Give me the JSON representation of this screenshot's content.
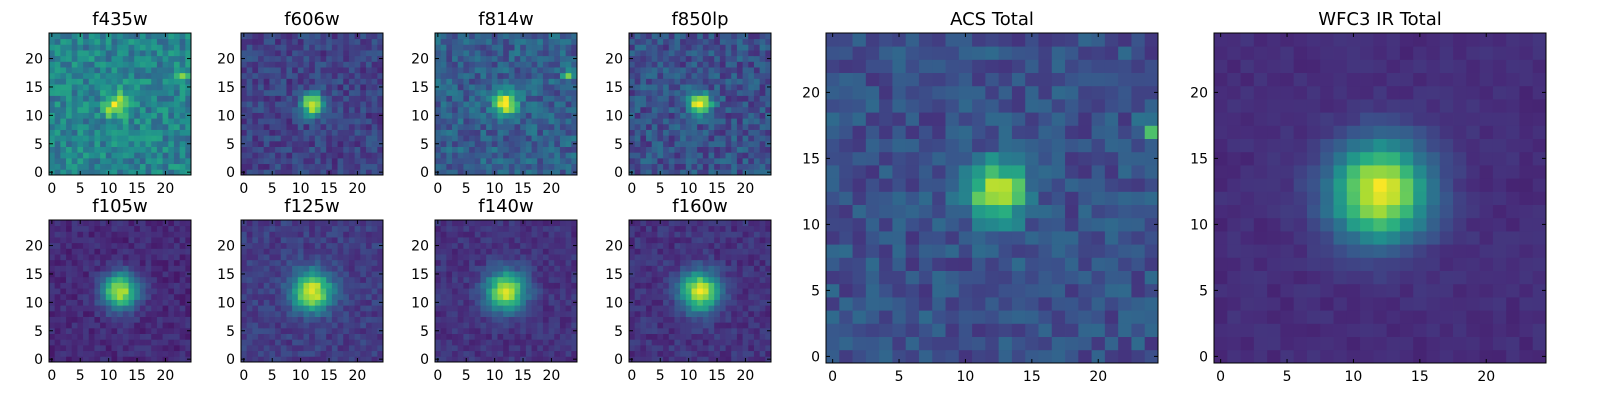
{
  "chart_data": [
    {
      "type": "heatmap",
      "title": "f435w",
      "peak": [
        12,
        12
      ],
      "amp": 0.4,
      "sigma": 1.6,
      "base": 0.45,
      "noise": 0.28,
      "extra": [
        [
          23,
          17,
          0.5
        ],
        [
          10,
          11,
          0.35
        ],
        [
          11,
          12,
          0.3
        ]
      ],
      "xticks": [
        "0",
        "5",
        "10",
        "15",
        "20"
      ],
      "yticks": [
        "0",
        "5",
        "10",
        "15",
        "20"
      ]
    },
    {
      "type": "heatmap",
      "title": "f606w",
      "peak": [
        12,
        12
      ],
      "amp": 0.75,
      "sigma": 1.4,
      "base": 0.2,
      "noise": 0.2,
      "extra": [],
      "xticks": [
        "0",
        "5",
        "10",
        "15",
        "20"
      ],
      "yticks": [
        "0",
        "5",
        "10",
        "15",
        "20"
      ]
    },
    {
      "type": "heatmap",
      "title": "f814w",
      "peak": [
        12,
        12
      ],
      "amp": 0.75,
      "sigma": 1.4,
      "base": 0.3,
      "noise": 0.25,
      "extra": [
        [
          23,
          17,
          0.55
        ]
      ],
      "xticks": [
        "0",
        "5",
        "10",
        "15",
        "20"
      ],
      "yticks": [
        "0",
        "5",
        "10",
        "15",
        "20"
      ]
    },
    {
      "type": "heatmap",
      "title": "f850lp",
      "peak": [
        12,
        12
      ],
      "amp": 0.75,
      "sigma": 1.4,
      "base": 0.25,
      "noise": 0.25,
      "extra": [],
      "xticks": [
        "0",
        "5",
        "10",
        "15",
        "20"
      ],
      "yticks": [
        "0",
        "5",
        "10",
        "15",
        "20"
      ]
    },
    {
      "type": "heatmap",
      "title": "f105w",
      "peak": [
        12,
        12
      ],
      "amp": 0.8,
      "sigma": 2.2,
      "base": 0.12,
      "noise": 0.12,
      "extra": [],
      "xticks": [
        "0",
        "5",
        "10",
        "15",
        "20"
      ],
      "yticks": [
        "0",
        "5",
        "10",
        "15",
        "20"
      ]
    },
    {
      "type": "heatmap",
      "title": "f125w",
      "peak": [
        12,
        12
      ],
      "amp": 0.8,
      "sigma": 2.4,
      "base": 0.18,
      "noise": 0.14,
      "extra": [],
      "xticks": [
        "0",
        "5",
        "10",
        "15",
        "20"
      ],
      "yticks": [
        "0",
        "5",
        "10",
        "15",
        "20"
      ]
    },
    {
      "type": "heatmap",
      "title": "f140w",
      "peak": [
        12,
        12
      ],
      "amp": 0.8,
      "sigma": 2.4,
      "base": 0.15,
      "noise": 0.12,
      "extra": [],
      "xticks": [
        "0",
        "5",
        "10",
        "15",
        "20"
      ],
      "yticks": [
        "0",
        "5",
        "10",
        "15",
        "20"
      ]
    },
    {
      "type": "heatmap",
      "title": "f160w",
      "peak": [
        12,
        12
      ],
      "amp": 0.8,
      "sigma": 2.4,
      "base": 0.15,
      "noise": 0.13,
      "extra": [],
      "xticks": [
        "0",
        "5",
        "10",
        "15",
        "20"
      ],
      "yticks": [
        "0",
        "5",
        "10",
        "15",
        "20"
      ]
    },
    {
      "type": "heatmap",
      "title": "ACS Total",
      "peak": [
        12.5,
        12.5
      ],
      "amp": 0.75,
      "sigma": 1.5,
      "base": 0.25,
      "noise": 0.2,
      "extra": [
        [
          24,
          17,
          0.4
        ]
      ],
      "xticks": [
        "0",
        "5",
        "10",
        "15",
        "20"
      ],
      "yticks": [
        "0",
        "5",
        "10",
        "15",
        "20"
      ]
    },
    {
      "type": "heatmap",
      "title": "WFC3 IR Total",
      "peak": [
        12,
        12.5
      ],
      "amp": 0.85,
      "sigma": 2.6,
      "base": 0.13,
      "noise": 0.06,
      "extra": [],
      "xticks": [
        "0",
        "5",
        "10",
        "15",
        "20"
      ],
      "yticks": [
        "0",
        "5",
        "10",
        "15",
        "20"
      ]
    }
  ],
  "colormap": "viridis",
  "grid_size": 25,
  "axis_range": [
    -0.5,
    24.5
  ]
}
